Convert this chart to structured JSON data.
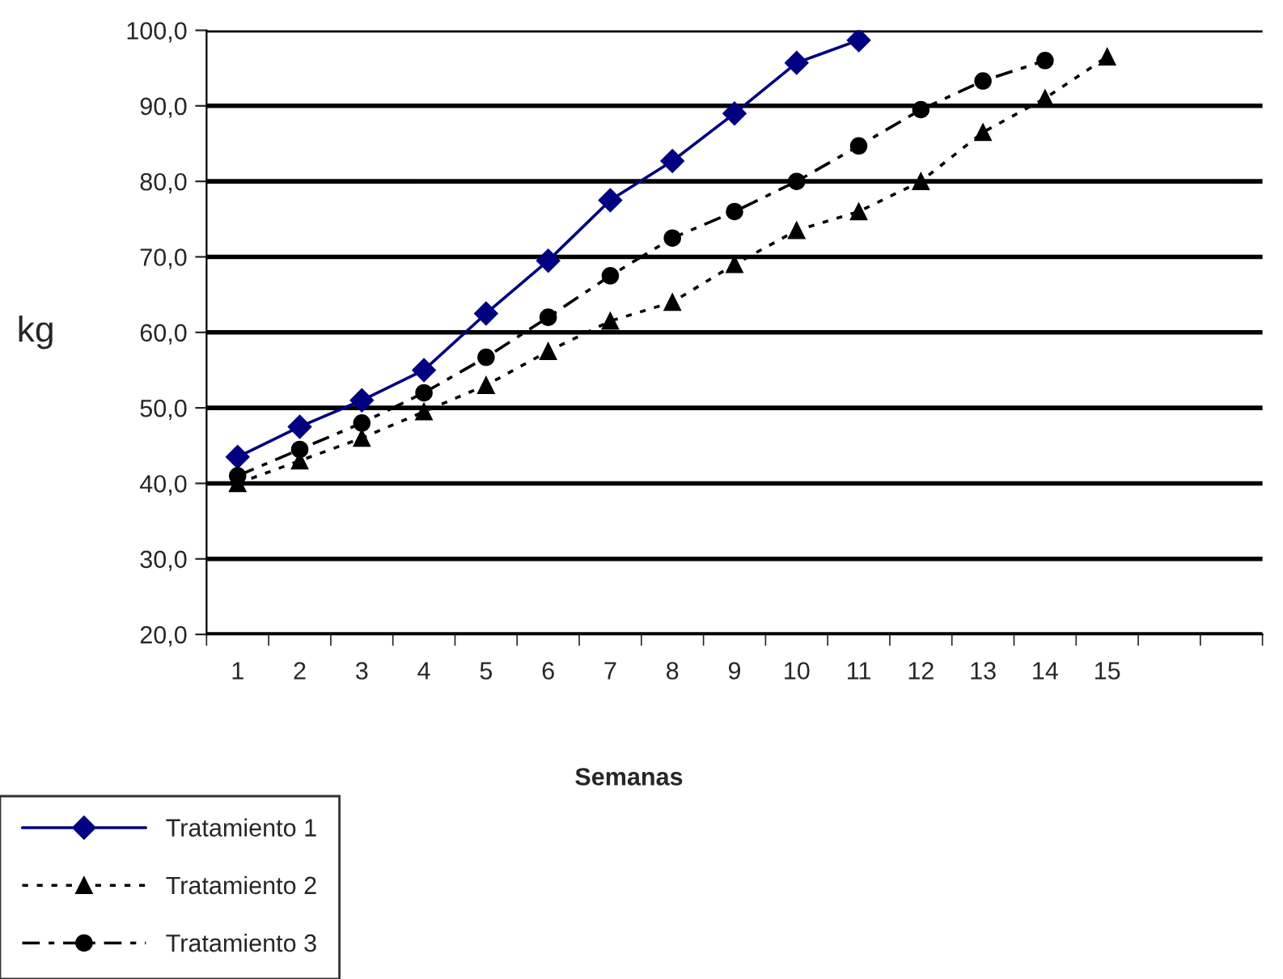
{
  "chart_data": {
    "type": "line",
    "xlabel": "Semanas",
    "ylabel": "kg",
    "categories": [
      "1",
      "2",
      "3",
      "4",
      "5",
      "6",
      "7",
      "8",
      "9",
      "10",
      "11",
      "12",
      "13",
      "14",
      "15",
      null,
      null
    ],
    "series": [
      {
        "name": "Tratamiento 1",
        "color": "#000080",
        "marker": "diamond",
        "line_style": "solid",
        "values": [
          43.5,
          47.5,
          51,
          55,
          62.5,
          69.5,
          77.5,
          82.7,
          89,
          95.7,
          98.7,
          null,
          null,
          null,
          null,
          null,
          null
        ]
      },
      {
        "name": "Tratamiento 2",
        "color": "#000000",
        "marker": "triangle",
        "line_style": "dotted",
        "values": [
          40,
          43,
          46,
          49.5,
          53,
          57.5,
          61.5,
          64,
          69,
          73.5,
          76,
          80,
          86.5,
          91,
          96.5,
          null,
          null
        ]
      },
      {
        "name": "Tratamiento 3",
        "color": "#000000",
        "marker": "circle",
        "line_style": "dashed",
        "values": [
          41,
          44.5,
          48,
          52,
          56.7,
          62,
          67.5,
          72.5,
          76,
          80,
          84.7,
          89.5,
          93.3,
          96,
          null,
          null,
          null
        ]
      }
    ],
    "ylim": [
      20,
      100
    ],
    "yticks": [
      {
        "value": 20,
        "label": "20,0"
      },
      {
        "value": 30,
        "label": "30,0"
      },
      {
        "value": 40,
        "label": "40,0"
      },
      {
        "value": 50,
        "label": "50,0"
      },
      {
        "value": 60,
        "label": "60,0"
      },
      {
        "value": 70,
        "label": "70,0"
      },
      {
        "value": 80,
        "label": "80,0"
      },
      {
        "value": 90,
        "label": "90,0"
      },
      {
        "value": 100,
        "label": "100,0"
      }
    ],
    "grid": "y",
    "legend": "bottom left"
  }
}
